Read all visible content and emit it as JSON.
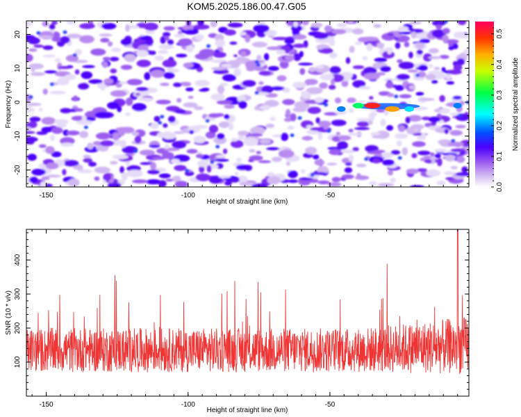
{
  "title": "KOM5.2025.186.00.47.G05",
  "colors": {
    "snr_line": "#f03434",
    "frame": "#000000"
  },
  "chart_data": [
    {
      "type": "heatmap",
      "xlabel": "Height of straight line (km)",
      "ylabel": "Frequency (Hz)",
      "xlim": [
        -157,
        -1
      ],
      "ylim": [
        -25,
        24
      ],
      "x_ticks": [
        "-150",
        "-100",
        "-50"
      ],
      "y_ticks": [
        "20",
        "10",
        "0",
        "-10",
        "-20"
      ],
      "colorbar": {
        "label": "Normalized spectral amplitude",
        "range": [
          0.0,
          0.54
        ],
        "ticks": [
          "0.0",
          "0.1",
          "0.2",
          "0.3",
          "0.4",
          "0.5"
        ],
        "colormap": "rainbow (white-violet-blue-cyan-green-yellow-red)"
      },
      "hotspots": [
        {
          "x": -35,
          "y": -1,
          "value": 0.53
        },
        {
          "x": -28,
          "y": -2,
          "value": 0.45
        },
        {
          "x": -40,
          "y": -1,
          "value": 0.3
        },
        {
          "x": -22,
          "y": -2,
          "value": 0.2
        },
        {
          "x": -46,
          "y": -2,
          "value": 0.16
        },
        {
          "x": -5,
          "y": -1,
          "value": 0.14
        }
      ]
    },
    {
      "type": "line",
      "xlabel": "Height of straight line (km)",
      "ylabel": "SNR (10 * v/v)",
      "xlim": [
        -157,
        -1
      ],
      "ylim": [
        0,
        490
      ],
      "x_ticks": [
        "-150",
        "-100",
        "-50"
      ],
      "y_ticks": [
        "100",
        "200",
        "300",
        "400"
      ],
      "series": [
        {
          "baseline": 135,
          "noise": 65,
          "peak": 490,
          "peak_x": -5,
          "x_range": [
            -157,
            -1
          ],
          "samples": 1500
        }
      ]
    }
  ]
}
